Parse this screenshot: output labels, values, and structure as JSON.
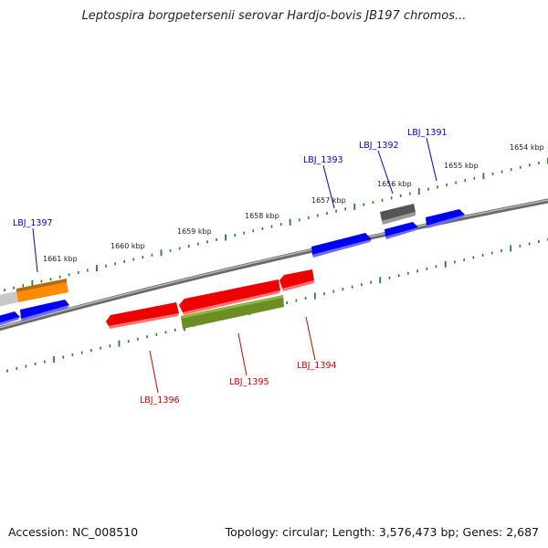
{
  "title": "Leptospira borgpetersenii serovar Hardjo-bovis JB197 chromos...",
  "footer": {
    "accession": "Accession: NC_008510",
    "summary": "Topology: circular; Length: 3,576,473 bp; Genes: 2,687"
  },
  "colors": {
    "forward_gene_label": "#0000cc",
    "reverse_gene_label": "#cc0000",
    "forward_cds": "#0000ee",
    "reverse_cds": "#ee0000",
    "rna_gene": "#6b8e23",
    "pseudo_gene": "#555555",
    "partial_gene": "#ff8c00",
    "tick": "#2a7a2a",
    "backbone": "#7a7a7a"
  },
  "scale_labels": [
    "1654 kbp",
    "1655 kbp",
    "1656 kbp",
    "1657 kbp",
    "1658 kbp",
    "1659 kbp",
    "1660 kbp",
    "1661 kbp"
  ],
  "gene_labels": {
    "forward": [
      "LBJ_1391",
      "LBJ_1392",
      "LBJ_1393",
      "LBJ_1397"
    ],
    "reverse": [
      "LBJ_1394",
      "LBJ_1395",
      "LBJ_1396"
    ]
  }
}
